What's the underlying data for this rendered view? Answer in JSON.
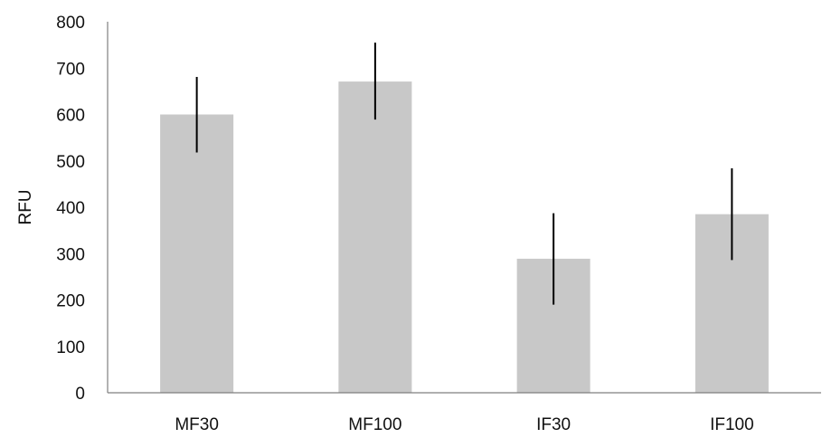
{
  "chart_data": {
    "type": "bar",
    "title": "",
    "xlabel": "",
    "ylabel": "RFU",
    "categories": [
      "MF30",
      "MF100",
      "IF30",
      "IF100"
    ],
    "values": [
      600,
      671,
      289,
      385
    ],
    "error_low": [
      518,
      589,
      190,
      286
    ],
    "error_high": [
      681,
      755,
      387,
      484
    ],
    "ylim": [
      0,
      800
    ],
    "yticks": [
      "0",
      "100",
      "200",
      "300",
      "400",
      "500",
      "600",
      "700",
      "800"
    ],
    "grid": false,
    "legend": "none",
    "colors": {
      "bar": "#c8c8c8",
      "error_bar": "#000000",
      "axis": "#7f7f7f"
    }
  }
}
